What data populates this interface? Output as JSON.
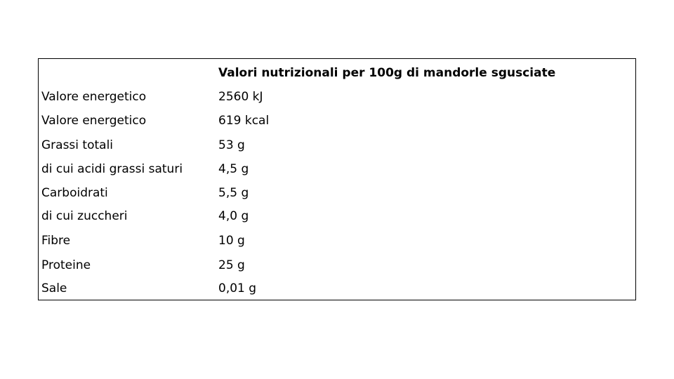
{
  "table": {
    "header": "Valori nutrizionali per 100g di mandorle sgusciate",
    "rows": [
      [
        "Valore energetico",
        "2560 kJ"
      ],
      [
        "Valore energetico",
        "619 kcal"
      ],
      [
        "Grassi totali",
        "53 g"
      ],
      [
        "di cui acidi grassi saturi",
        "4,5 g"
      ],
      [
        "Carboidrati",
        "5,5 g"
      ],
      [
        "di cui zuccheri",
        "4,0 g"
      ],
      [
        "Fibre",
        "10 g"
      ],
      [
        "Proteine",
        "25 g"
      ],
      [
        "Sale",
        "0,01 g"
      ]
    ]
  }
}
